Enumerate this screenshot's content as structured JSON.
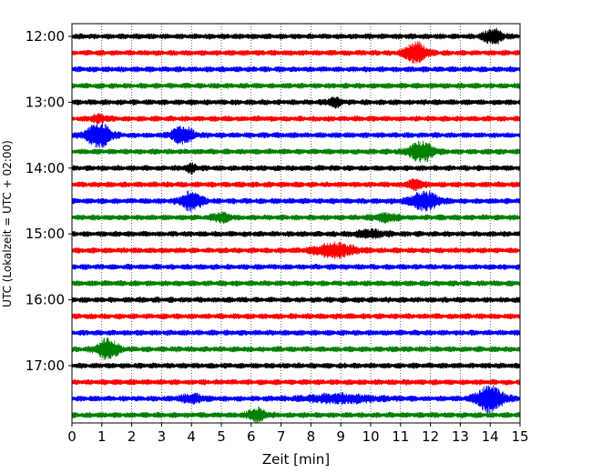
{
  "chart_data": {
    "type": "line",
    "title": "",
    "xlabel": "Zeit  [min]",
    "ylabel": "UTC (Lokalzeit = UTC + 02:00)",
    "xlim": [
      0,
      15
    ],
    "x_ticks": [
      "0",
      "1",
      "2",
      "3",
      "4",
      "5",
      "6",
      "7",
      "8",
      "9",
      "10",
      "11",
      "12",
      "13",
      "14",
      "15"
    ],
    "y_tick_labels": [
      "12:00",
      "13:00",
      "14:00",
      "15:00",
      "16:00",
      "17:00"
    ],
    "y_tick_rows": [
      0,
      4,
      8,
      12,
      16,
      20
    ],
    "grid": "vertical-dotted",
    "trace_minutes": 15,
    "trace_interval_minutes": 15,
    "start_time_utc": "12:00",
    "series_colors": [
      "#000000",
      "#ff0000",
      "#0000ff",
      "#008000"
    ],
    "rows": [
      {
        "color": "#000000",
        "events": [
          {
            "t": 14.1,
            "amp": 1.9,
            "w": 0.3
          }
        ]
      },
      {
        "color": "#ff0000",
        "events": [
          {
            "t": 11.5,
            "amp": 2.5,
            "w": 0.35
          }
        ]
      },
      {
        "color": "#0000ff",
        "events": []
      },
      {
        "color": "#008000",
        "events": []
      },
      {
        "color": "#000000",
        "events": [
          {
            "t": 8.8,
            "amp": 1.0,
            "w": 0.25
          }
        ]
      },
      {
        "color": "#ff0000",
        "events": [
          {
            "t": 0.9,
            "amp": 0.7,
            "w": 0.3
          }
        ]
      },
      {
        "color": "#0000ff",
        "events": [
          {
            "t": 0.9,
            "amp": 3.0,
            "w": 0.4
          },
          {
            "t": 3.7,
            "amp": 2.2,
            "w": 0.35
          }
        ]
      },
      {
        "color": "#008000",
        "events": [
          {
            "t": 11.7,
            "amp": 2.4,
            "w": 0.4
          }
        ]
      },
      {
        "color": "#000000",
        "events": [
          {
            "t": 4.0,
            "amp": 0.9,
            "w": 0.2
          }
        ]
      },
      {
        "color": "#ff0000",
        "events": [
          {
            "t": 11.5,
            "amp": 1.0,
            "w": 0.3
          }
        ]
      },
      {
        "color": "#0000ff",
        "events": [
          {
            "t": 4.0,
            "amp": 2.2,
            "w": 0.35
          },
          {
            "t": 11.8,
            "amp": 2.3,
            "w": 0.45
          }
        ]
      },
      {
        "color": "#008000",
        "events": [
          {
            "t": 5.0,
            "amp": 1.0,
            "w": 0.3
          },
          {
            "t": 10.5,
            "amp": 0.8,
            "w": 0.4
          }
        ]
      },
      {
        "color": "#000000",
        "events": [
          {
            "t": 10.0,
            "amp": 0.8,
            "w": 0.5
          }
        ]
      },
      {
        "color": "#ff0000",
        "events": [
          {
            "t": 8.8,
            "amp": 1.6,
            "w": 0.7
          }
        ]
      },
      {
        "color": "#0000ff",
        "events": []
      },
      {
        "color": "#008000",
        "events": []
      },
      {
        "color": "#000000",
        "events": []
      },
      {
        "color": "#ff0000",
        "events": []
      },
      {
        "color": "#0000ff",
        "events": []
      },
      {
        "color": "#008000",
        "events": [
          {
            "t": 1.2,
            "amp": 2.4,
            "w": 0.35
          }
        ]
      },
      {
        "color": "#000000",
        "events": []
      },
      {
        "color": "#ff0000",
        "events": []
      },
      {
        "color": "#0000ff",
        "events": [
          {
            "t": 4.0,
            "amp": 0.9,
            "w": 0.4
          },
          {
            "t": 9.0,
            "amp": 0.9,
            "w": 1.2
          },
          {
            "t": 14.0,
            "amp": 3.2,
            "w": 0.45
          }
        ]
      },
      {
        "color": "#008000",
        "events": [
          {
            "t": 6.2,
            "amp": 1.6,
            "w": 0.3
          }
        ]
      }
    ]
  }
}
